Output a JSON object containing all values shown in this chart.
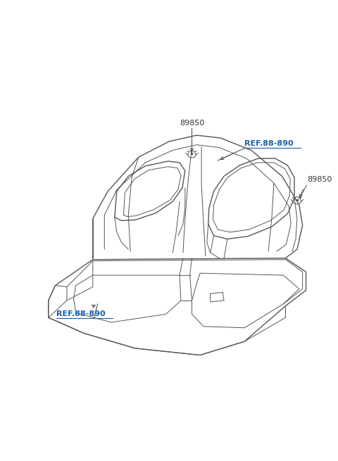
{
  "background_color": "#ffffff",
  "line_color": "#555555",
  "ref_color": "#1a5fa8",
  "label_color": "#333333",
  "figsize": [
    4.8,
    6.55
  ],
  "dpi": 100,
  "lw_main": 1.0,
  "lw_detail": 0.7,
  "label_89850_1": "89850",
  "label_89850_2": "89850",
  "label_ref1": "REF.88-890",
  "label_ref2": "REF.88-890"
}
